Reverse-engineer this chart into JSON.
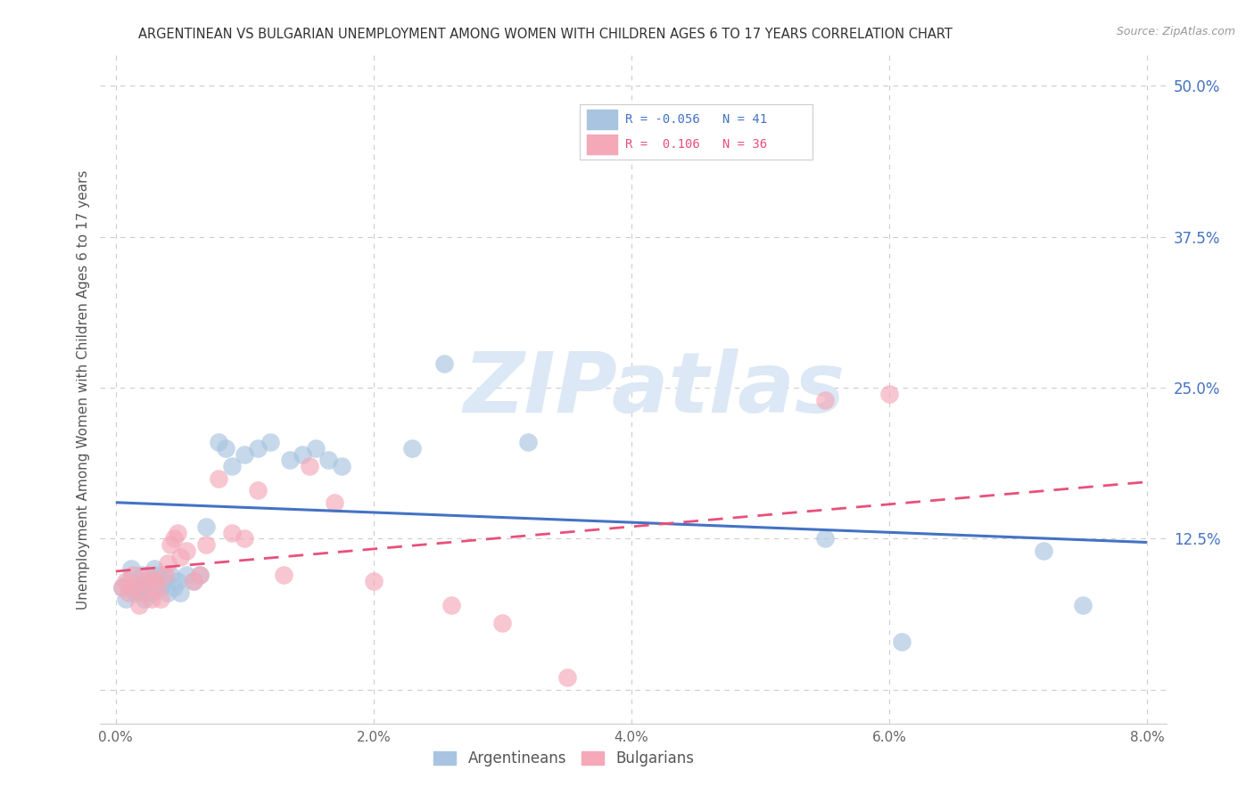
{
  "title": "ARGENTINEAN VS BULGARIAN UNEMPLOYMENT AMONG WOMEN WITH CHILDREN AGES 6 TO 17 YEARS CORRELATION CHART",
  "source": "Source: ZipAtlas.com",
  "ylabel": "Unemployment Among Women with Children Ages 6 to 17 years",
  "color_arg": "#a8c4e0",
  "color_bul": "#f4a8b8",
  "color_arg_line": "#4472c4",
  "color_bul_line": "#e8507a",
  "watermark_color": "#dce8f5",
  "arg_x": [
    0.05,
    0.08,
    0.1,
    0.12,
    0.15,
    0.18,
    0.2,
    0.22,
    0.25,
    0.28,
    0.3,
    0.32,
    0.35,
    0.38,
    0.4,
    0.42,
    0.45,
    0.48,
    0.5,
    0.55,
    0.6,
    0.65,
    0.7,
    0.8,
    0.85,
    0.9,
    1.0,
    1.1,
    1.2,
    1.35,
    1.45,
    1.55,
    1.65,
    1.75,
    2.3,
    2.55,
    3.2,
    5.5,
    6.1,
    7.2,
    7.5
  ],
  "arg_y": [
    0.085,
    0.075,
    0.09,
    0.1,
    0.08,
    0.085,
    0.095,
    0.075,
    0.09,
    0.08,
    0.1,
    0.095,
    0.085,
    0.09,
    0.08,
    0.095,
    0.085,
    0.09,
    0.08,
    0.095,
    0.09,
    0.095,
    0.135,
    0.205,
    0.2,
    0.185,
    0.195,
    0.2,
    0.205,
    0.19,
    0.195,
    0.2,
    0.19,
    0.185,
    0.2,
    0.27,
    0.205,
    0.125,
    0.04,
    0.115,
    0.07
  ],
  "bul_x": [
    0.05,
    0.08,
    0.1,
    0.13,
    0.15,
    0.18,
    0.2,
    0.22,
    0.25,
    0.28,
    0.3,
    0.32,
    0.35,
    0.38,
    0.4,
    0.42,
    0.45,
    0.48,
    0.5,
    0.55,
    0.6,
    0.65,
    0.7,
    0.8,
    0.9,
    1.0,
    1.1,
    1.3,
    1.5,
    1.7,
    2.0,
    2.6,
    3.0,
    3.5,
    5.5,
    6.0
  ],
  "bul_y": [
    0.085,
    0.09,
    0.08,
    0.095,
    0.085,
    0.07,
    0.08,
    0.09,
    0.095,
    0.075,
    0.09,
    0.085,
    0.075,
    0.095,
    0.105,
    0.12,
    0.125,
    0.13,
    0.11,
    0.115,
    0.09,
    0.095,
    0.12,
    0.175,
    0.13,
    0.125,
    0.165,
    0.095,
    0.185,
    0.155,
    0.09,
    0.07,
    0.055,
    0.01,
    0.24,
    0.245
  ],
  "arg_line_x0": 0.0,
  "arg_line_y0": 0.155,
  "arg_line_x1": 8.0,
  "arg_line_y1": 0.122,
  "bul_line_x0": 0.0,
  "bul_line_y0": 0.098,
  "bul_line_x1": 8.0,
  "bul_line_y1": 0.172,
  "xlim": [
    -0.12,
    8.15
  ],
  "ylim": [
    -0.028,
    0.525
  ],
  "xticks": [
    0.0,
    2.0,
    4.0,
    6.0,
    8.0
  ],
  "xtick_labels": [
    "0.0%",
    "2.0%",
    "4.0%",
    "6.0%",
    "8.0%"
  ],
  "yticks_right": [
    0.125,
    0.25,
    0.375,
    0.5
  ],
  "ytick_labels_right": [
    "12.5%",
    "25.0%",
    "37.5%",
    "50.0%"
  ],
  "legend_r1": "R = -0.056",
  "legend_n1": "N = 41",
  "legend_r2": "R =  0.106",
  "legend_n2": "N = 36",
  "legend_label1": "Argentineans",
  "legend_label2": "Bulgarians"
}
